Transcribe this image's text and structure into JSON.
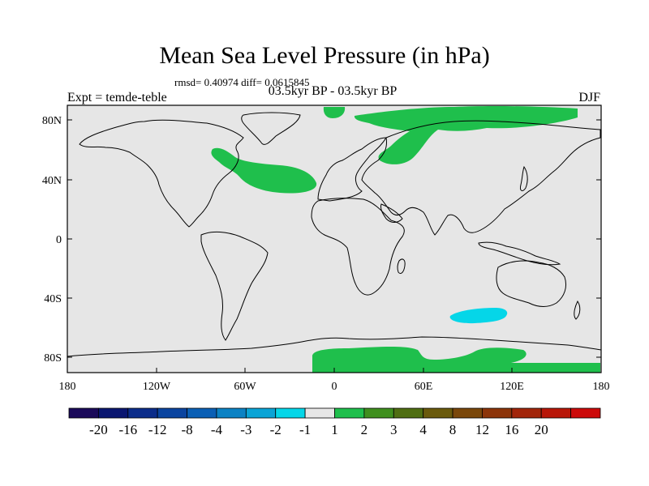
{
  "title": "Mean Sea Level Pressure (in hPa)",
  "subtitle": "rmsd= 0.40974 diff= 0.0615845",
  "left_label": "Expt = temde-teble",
  "center_label": "03.5kyr BP - 03.5kyr BP",
  "right_label": "DJF",
  "x_ticks": [
    "180",
    "120W",
    "60W",
    "0",
    "60E",
    "120E",
    "180"
  ],
  "y_ticks": [
    "80N",
    "40N",
    "0",
    "40S",
    "80S"
  ],
  "colorbar": {
    "colors": [
      "#1b0a5a",
      "#0a1670",
      "#0b2c8a",
      "#0a44a0",
      "#0a5fb5",
      "#0b82c4",
      "#0aa4d6",
      "#05d6e8",
      "#e6e6e6",
      "#1fbf4c",
      "#3f8f1e",
      "#4f6e12",
      "#6a5a0c",
      "#7a470a",
      "#8c3409",
      "#a2250a",
      "#b81608",
      "#cc0a0a"
    ],
    "labels": [
      "-20",
      "-16",
      "-12",
      "-8",
      "-4",
      "-3",
      "-2",
      "-1",
      "1",
      "2",
      "3",
      "4",
      "8",
      "12",
      "16",
      "20"
    ]
  },
  "palette": {
    "background": "#e6e6e6",
    "positive": "#1fbf4c",
    "negative": "#05d6e8"
  }
}
